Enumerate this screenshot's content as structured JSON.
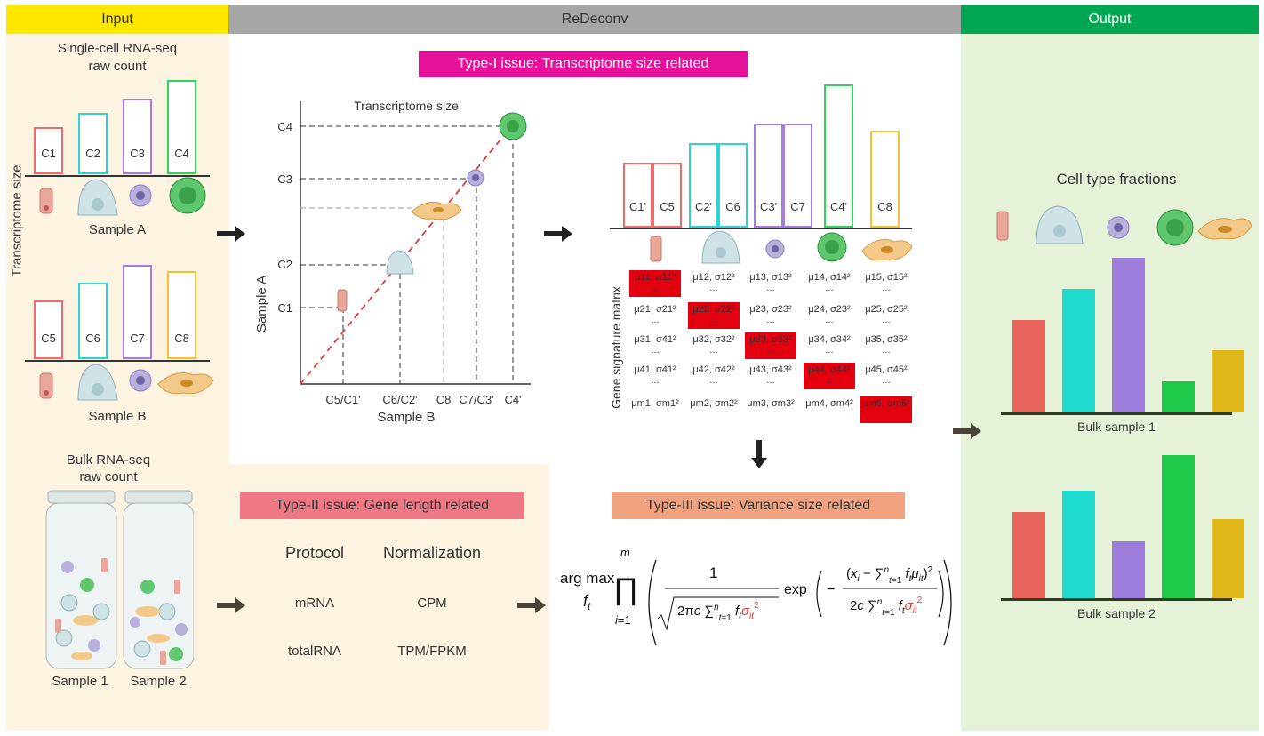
{
  "headers": {
    "input": "Input",
    "redeconv": "ReDeconv",
    "output": "Output"
  },
  "colors": {
    "input_header": "#ffe800",
    "redeconv_header": "#a6a6a6",
    "output_header": "#00a651",
    "input_bg": "#fdf3e1",
    "output_bg": "#e5f2d8",
    "type1_bg": "#e6119b",
    "type2_bg": "#ef7884",
    "type3_bg": "#f1a37f",
    "c_red": "#ef6a6a",
    "c_cyan": "#2dd3d8",
    "c_purple": "#a57be0",
    "c_green": "#2fd45a",
    "c_yellow": "#f1c232"
  },
  "input": {
    "sc_title_line1": "Single-cell RNA-seq",
    "sc_title_line2": "raw count",
    "y_label": "Transcriptome size",
    "sample_a": {
      "label": "Sample A",
      "bars": [
        {
          "name": "C1",
          "size": 1.0
        },
        {
          "name": "C2",
          "size": 1.3
        },
        {
          "name": "C3",
          "size": 1.6
        },
        {
          "name": "C4",
          "size": 2.0
        }
      ]
    },
    "sample_b": {
      "label": "Sample B",
      "bars": [
        {
          "name": "C5",
          "size": 1.0
        },
        {
          "name": "C6",
          "size": 1.3
        },
        {
          "name": "C7",
          "size": 1.6
        },
        {
          "name": "C8",
          "size": 1.5
        }
      ]
    },
    "bulk_title_line1": "Bulk RNA-seq",
    "bulk_title_line2": "raw count",
    "bulk_sample1": "Sample 1",
    "bulk_sample2": "Sample 2"
  },
  "type1": {
    "title": "Type-I issue: Transcriptome size related",
    "scatter_title": "Transcriptome size",
    "y_axis": "Sample A",
    "x_axis": "Sample B",
    "y_ticks": [
      "C4",
      "C3",
      "C2",
      "C1"
    ],
    "x_ticks": [
      "C5/C1'",
      "C6/C2'",
      "C8",
      "C7/C3'",
      "C4'"
    ],
    "aligned_bars": [
      {
        "name": "C1'",
        "size": 1.0
      },
      {
        "name": "C5",
        "size": 1.0
      },
      {
        "name": "C2'",
        "size": 1.3
      },
      {
        "name": "C6",
        "size": 1.3
      },
      {
        "name": "C3'",
        "size": 1.6
      },
      {
        "name": "C7",
        "size": 1.6
      },
      {
        "name": "C4'",
        "size": 2.2
      },
      {
        "name": "C8",
        "size": 1.5
      }
    ],
    "matrix_label": "Gene signature matrix",
    "matrix_rows": [
      [
        "μ11, σ11²",
        "μ12, σ12²",
        "μ13, σ13²",
        "μ14, σ14²",
        "μ15, σ15²"
      ],
      [
        "μ21, σ21²",
        "μ22, σ22²",
        "μ23, σ23²",
        "μ24, σ23²",
        "μ25, σ25²"
      ],
      [
        "μ31, σ41²",
        "μ32, σ32²",
        "μ33, σ33²",
        "μ34, σ34²",
        "μ35, σ35²"
      ],
      [
        "μ41, σ41²",
        "μ42, σ42²",
        "μ43, σ43²",
        "μ44, σ44²",
        "μ45, σ45²"
      ],
      [
        "μm1, σm1²",
        "μm2, σm2²",
        "μm3, σm3²",
        "μm4, σm4²",
        "μm5, σm5²"
      ]
    ],
    "matrix_ellipsis": "..."
  },
  "type2": {
    "title": "Type-II issue: Gene length related",
    "col_protocol": "Protocol",
    "col_normalization": "Normalization",
    "rows": [
      {
        "protocol": "mRNA",
        "normalization": "CPM"
      },
      {
        "protocol": "totalRNA",
        "normalization": "TPM/FPKM"
      }
    ]
  },
  "type3": {
    "title": "Type-III issue: Variance size related",
    "formula_argmax": "arg max",
    "formula_var": "f",
    "formula_var_sub": "t"
  },
  "output": {
    "title": "Cell type fractions",
    "bulk1": {
      "label": "Bulk sample 1",
      "values": [
        0.6,
        0.8,
        1.0,
        0.2,
        0.4
      ]
    },
    "bulk2": {
      "label": "Bulk sample 2",
      "values": [
        0.6,
        0.75,
        0.4,
        1.0,
        0.55
      ]
    }
  }
}
